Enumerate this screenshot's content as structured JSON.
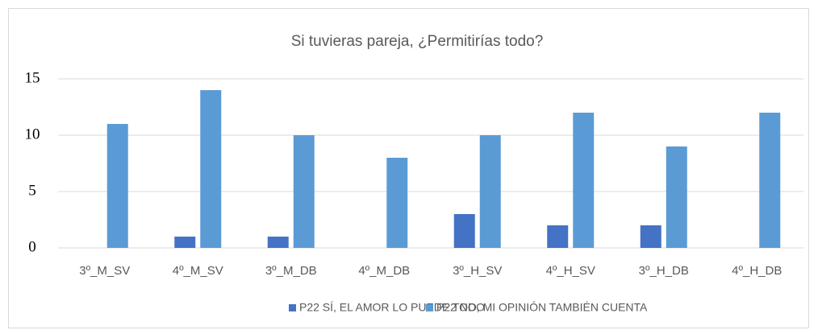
{
  "chart_data": {
    "type": "bar",
    "title": "Si tuvieras pareja, ¿Permitirías todo?",
    "categories": [
      "3º_M_SV",
      "4º_M_SV",
      "3º_M_DB",
      "4º_M_DB",
      "3º_H_SV",
      "4º_H_SV",
      "3º_H_DB",
      "4º_H_DB"
    ],
    "series": [
      {
        "name": "P22 SÍ, EL AMOR LO PUEDE TODO",
        "color": "#4472c4",
        "values": [
          0,
          1,
          1,
          0,
          3,
          2,
          2,
          0
        ]
      },
      {
        "name": "P22 NO, MI OPINIÓN TAMBIÉN CUENTA",
        "color": "#5b9bd5",
        "values": [
          11,
          14,
          10,
          8,
          10,
          12,
          9,
          12
        ]
      }
    ],
    "ylim": [
      0,
      15
    ],
    "yticks": [
      0,
      5,
      10,
      15
    ],
    "grid": true,
    "legend": "bottom"
  }
}
